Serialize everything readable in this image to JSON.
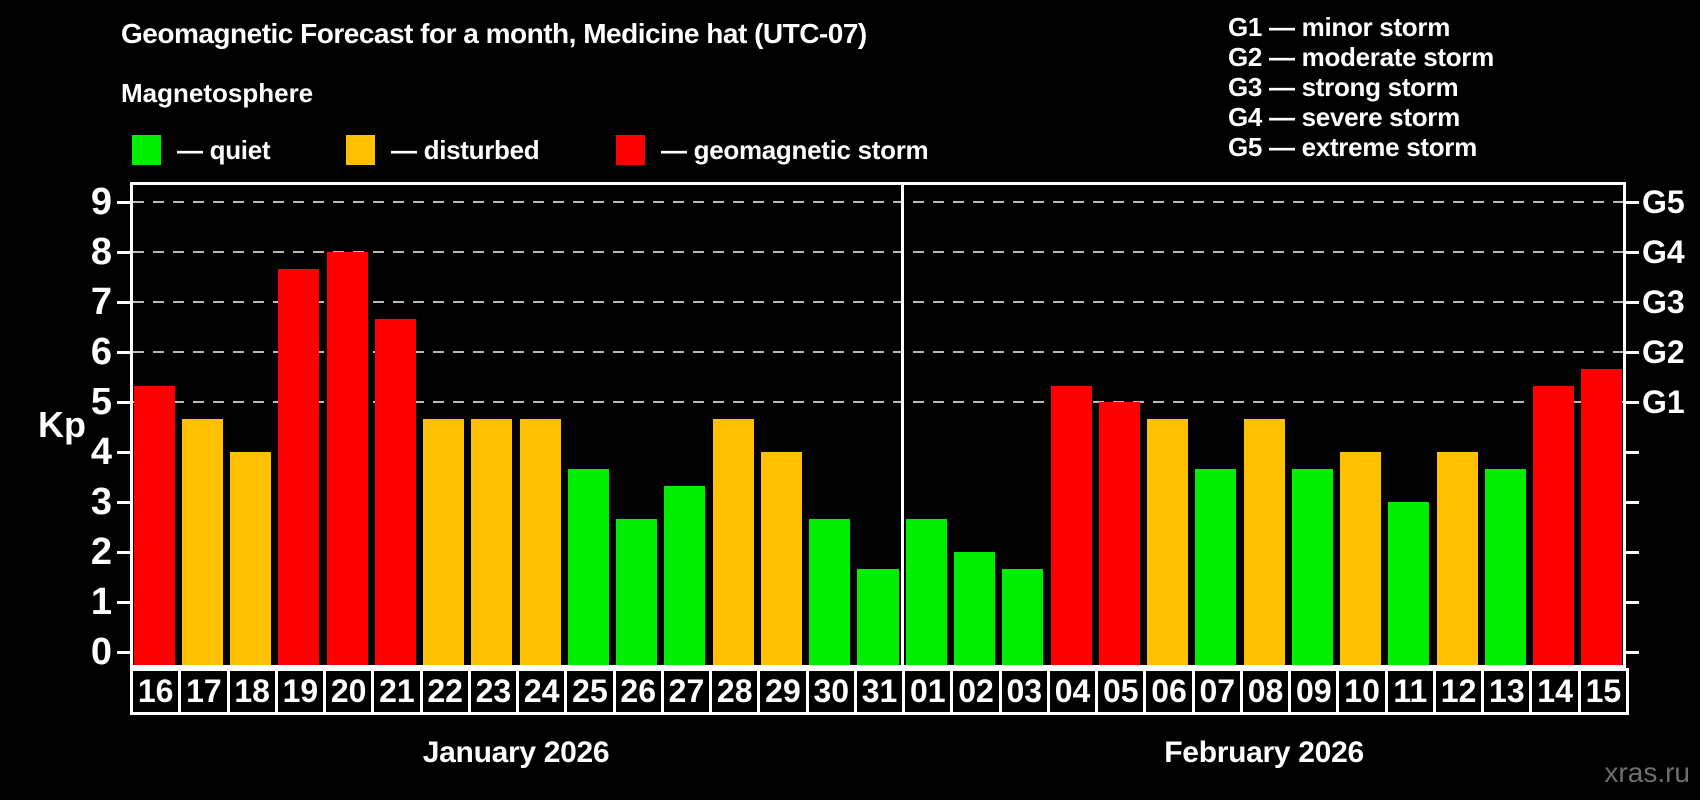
{
  "header": {
    "title": "Geomagnetic Forecast for a month, Medicine hat (UTC-07)",
    "subtitle": "Magnetosphere"
  },
  "legend": {
    "items": [
      {
        "key": "quiet",
        "label": "— quiet",
        "color": "#00ee00"
      },
      {
        "key": "disturbed",
        "label": "— disturbed",
        "color": "#ffc000"
      },
      {
        "key": "storm",
        "label": "— geomagnetic storm",
        "color": "#ff0000"
      }
    ]
  },
  "storm_scale_legend": [
    {
      "text": "G1 — minor storm"
    },
    {
      "text": "G2 — moderate storm"
    },
    {
      "text": "G3 — strong storm"
    },
    {
      "text": "G4 — severe storm"
    },
    {
      "text": "G5 — extreme storm"
    }
  ],
  "chart_data": {
    "type": "bar",
    "title": "Geomagnetic Forecast for a month, Medicine hat (UTC-07)",
    "ylabel": "Kp",
    "ylim": [
      0,
      9.4
    ],
    "yticks": [
      0,
      1,
      2,
      3,
      4,
      5,
      6,
      7,
      8,
      9
    ],
    "grid": "dashed horizontal lines at Kp 5-9 only",
    "legend_position": "top-left",
    "right_axis": [
      {
        "level": 5,
        "label": "G1"
      },
      {
        "level": 6,
        "label": "G2"
      },
      {
        "level": 7,
        "label": "G3"
      },
      {
        "level": 8,
        "label": "G4"
      },
      {
        "level": 9,
        "label": "G5"
      }
    ],
    "months": [
      {
        "label": "January 2026",
        "bars": [
          {
            "day": "16",
            "kp": 5.33,
            "state": "storm"
          },
          {
            "day": "17",
            "kp": 4.67,
            "state": "disturbed"
          },
          {
            "day": "18",
            "kp": 4.0,
            "state": "disturbed"
          },
          {
            "day": "19",
            "kp": 7.67,
            "state": "storm"
          },
          {
            "day": "20",
            "kp": 8.0,
            "state": "storm"
          },
          {
            "day": "21",
            "kp": 6.67,
            "state": "storm"
          },
          {
            "day": "22",
            "kp": 4.67,
            "state": "disturbed"
          },
          {
            "day": "23",
            "kp": 4.67,
            "state": "disturbed"
          },
          {
            "day": "24",
            "kp": 4.67,
            "state": "disturbed"
          },
          {
            "day": "25",
            "kp": 3.67,
            "state": "quiet"
          },
          {
            "day": "26",
            "kp": 2.67,
            "state": "quiet"
          },
          {
            "day": "27",
            "kp": 3.33,
            "state": "quiet"
          },
          {
            "day": "28",
            "kp": 4.67,
            "state": "disturbed"
          },
          {
            "day": "29",
            "kp": 4.0,
            "state": "disturbed"
          },
          {
            "day": "30",
            "kp": 2.67,
            "state": "quiet"
          },
          {
            "day": "31",
            "kp": 1.67,
            "state": "quiet"
          }
        ]
      },
      {
        "label": "February 2026",
        "bars": [
          {
            "day": "01",
            "kp": 2.67,
            "state": "quiet"
          },
          {
            "day": "02",
            "kp": 2.0,
            "state": "quiet"
          },
          {
            "day": "03",
            "kp": 1.67,
            "state": "quiet"
          },
          {
            "day": "04",
            "kp": 5.33,
            "state": "storm"
          },
          {
            "day": "05",
            "kp": 5.0,
            "state": "storm"
          },
          {
            "day": "06",
            "kp": 4.67,
            "state": "disturbed"
          },
          {
            "day": "07",
            "kp": 3.67,
            "state": "quiet"
          },
          {
            "day": "08",
            "kp": 4.67,
            "state": "disturbed"
          },
          {
            "day": "09",
            "kp": 3.67,
            "state": "quiet"
          },
          {
            "day": "10",
            "kp": 4.0,
            "state": "disturbed"
          },
          {
            "day": "11",
            "kp": 3.0,
            "state": "quiet"
          },
          {
            "day": "12",
            "kp": 4.0,
            "state": "disturbed"
          },
          {
            "day": "13",
            "kp": 3.67,
            "state": "quiet"
          },
          {
            "day": "14",
            "kp": 5.33,
            "state": "storm"
          },
          {
            "day": "15",
            "kp": 5.67,
            "state": "storm"
          }
        ]
      }
    ]
  },
  "state_colors": {
    "quiet": "#00ee00",
    "disturbed": "#ffc000",
    "storm": "#ff0000"
  },
  "watermark": "xras.ru"
}
